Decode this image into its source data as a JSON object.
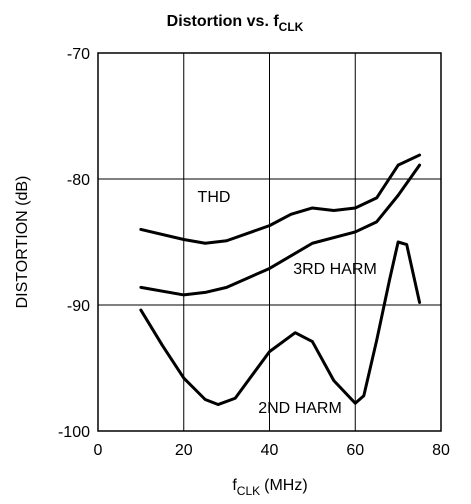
{
  "chart_data": {
    "type": "line",
    "title": {
      "main": "Distortion vs. f",
      "sub": "CLK"
    },
    "x_label": {
      "main": "f",
      "sub": "CLK",
      "unit": "(MHz)"
    },
    "y_label": "DISTORTION (dB)",
    "xlim": [
      0,
      80
    ],
    "xticks": [
      0,
      20,
      40,
      60,
      80
    ],
    "ylim": [
      -100,
      -70
    ],
    "yticks": [
      -100,
      -90,
      -80,
      -70
    ],
    "grid": true,
    "series": [
      {
        "name": "THD",
        "color": "#000000",
        "x": [
          10,
          20,
          25,
          30,
          40,
          45,
          50,
          55,
          60,
          65,
          70,
          75
        ],
        "values": [
          -84.0,
          -84.8,
          -85.1,
          -84.9,
          -83.7,
          -82.8,
          -82.3,
          -82.5,
          -82.3,
          -81.5,
          -78.9,
          -78.1
        ]
      },
      {
        "name": "3RD HARM",
        "color": "#000000",
        "x": [
          10,
          20,
          25,
          30,
          40,
          50,
          60,
          65,
          70,
          75
        ],
        "values": [
          -88.6,
          -89.2,
          -89.0,
          -88.6,
          -87.1,
          -85.1,
          -84.2,
          -83.4,
          -81.3,
          -78.9
        ]
      },
      {
        "name": "2ND HARM",
        "color": "#000000",
        "x": [
          10,
          15,
          20,
          25,
          28,
          32,
          40,
          46,
          50,
          55,
          60,
          62,
          65,
          68,
          70,
          72,
          75
        ],
        "values": [
          -90.4,
          -93.2,
          -95.8,
          -97.5,
          -97.9,
          -97.4,
          -93.7,
          -92.2,
          -92.9,
          -96.0,
          -97.8,
          -97.2,
          -92.8,
          -88.0,
          -85.0,
          -85.2,
          -89.8
        ]
      }
    ]
  }
}
